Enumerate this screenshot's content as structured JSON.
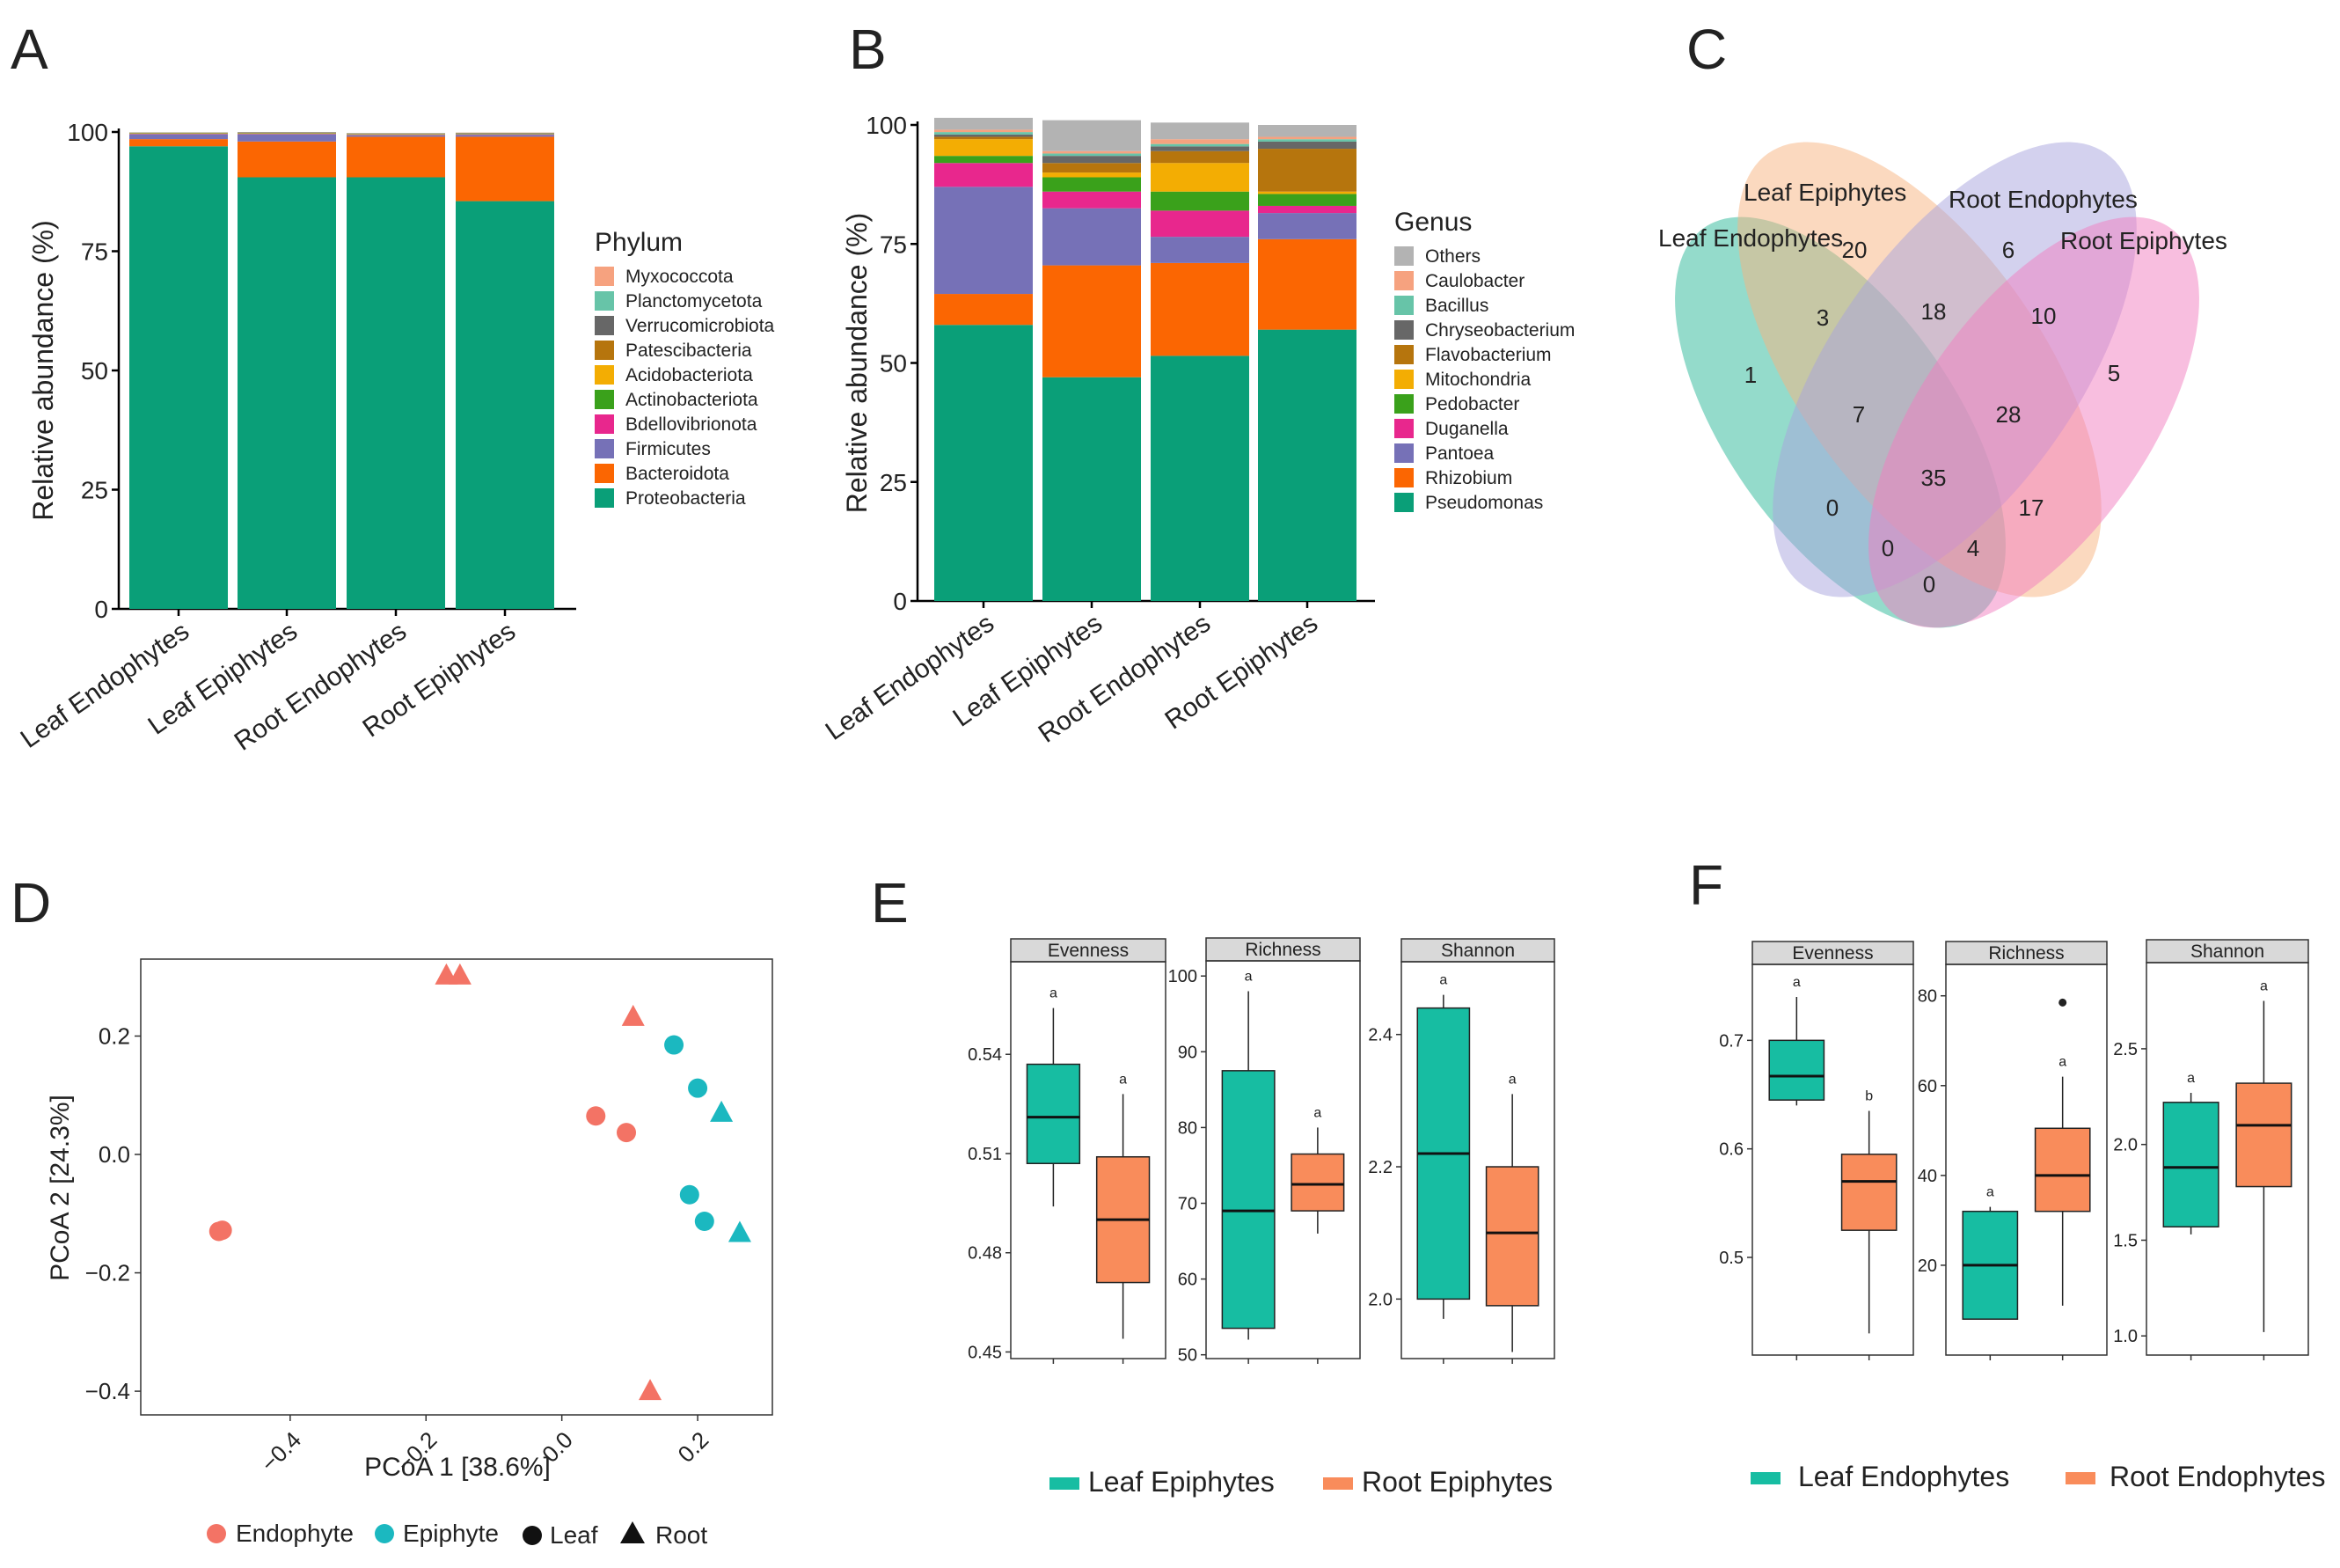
{
  "panel_labels": {
    "A": "A",
    "B": "B",
    "C": "C",
    "D": "D",
    "E": "E",
    "F": "F"
  },
  "chart_data": [
    {
      "id": "A",
      "type": "bar",
      "stacked": true,
      "ylabel": "Relative abundance (%)",
      "ylim": [
        0,
        100
      ],
      "yticks": [
        0,
        25,
        50,
        75,
        100
      ],
      "categories": [
        "Leaf Endophytes",
        "Leaf Epiphytes",
        "Root Endophytes",
        "Root Epiphytes"
      ],
      "legend_title": "Phylum",
      "series": [
        {
          "name": "Proteobacteria",
          "color": "#0a9f78",
          "values": [
            97.0,
            90.5,
            90.5,
            85.5
          ]
        },
        {
          "name": "Bacteroidota",
          "color": "#fb6602",
          "values": [
            1.5,
            7.5,
            8.5,
            13.5
          ]
        },
        {
          "name": "Firmicutes",
          "color": "#7671b7",
          "values": [
            1.0,
            1.5,
            0.3,
            0.4
          ]
        },
        {
          "name": "Bdellovibrionota",
          "color": "#e8278d",
          "values": [
            0.1,
            0.1,
            0.1,
            0.1
          ]
        },
        {
          "name": "Actinobacteriota",
          "color": "#3aa11b",
          "values": [
            0.1,
            0.1,
            0.1,
            0.1
          ]
        },
        {
          "name": "Acidobacteriota",
          "color": "#f3ad03",
          "values": [
            0.05,
            0.05,
            0.05,
            0.05
          ]
        },
        {
          "name": "Patescibacteria",
          "color": "#b6750d",
          "values": [
            0.05,
            0.05,
            0.05,
            0.05
          ]
        },
        {
          "name": "Verrucomicrobiota",
          "color": "#676767",
          "values": [
            0.05,
            0.1,
            0.1,
            0.1
          ]
        },
        {
          "name": "Planctomycetota",
          "color": "#67c4a8",
          "values": [
            0.05,
            0.05,
            0.05,
            0.05
          ]
        },
        {
          "name": "Myxococcota",
          "color": "#f6a27f",
          "values": [
            0.05,
            0.05,
            0.05,
            0.05
          ]
        }
      ]
    },
    {
      "id": "B",
      "type": "bar",
      "stacked": true,
      "ylabel": "Relative abundance (%)",
      "ylim": [
        0,
        100
      ],
      "yticks": [
        0,
        25,
        50,
        75,
        100
      ],
      "categories": [
        "Leaf Endophytes",
        "Leaf Epiphytes",
        "Root Endophytes",
        "Root Epiphytes"
      ],
      "legend_title": "Genus",
      "series": [
        {
          "name": "Pseudomonas",
          "color": "#0a9f78",
          "values": [
            58,
            47,
            51.5,
            57
          ]
        },
        {
          "name": "Rhizobium",
          "color": "#fb6602",
          "values": [
            6.5,
            23.5,
            19.5,
            19
          ]
        },
        {
          "name": "Pantoea",
          "color": "#7671b7",
          "values": [
            22.5,
            12,
            5.5,
            5.5
          ]
        },
        {
          "name": "Duganella",
          "color": "#e8278d",
          "values": [
            5,
            3.5,
            5.5,
            1.5
          ]
        },
        {
          "name": "Pedobacter",
          "color": "#3aa11b",
          "values": [
            1.5,
            3,
            4,
            2.5
          ]
        },
        {
          "name": "Mitochondria",
          "color": "#f3ad03",
          "values": [
            3.5,
            1,
            6,
            0.5
          ]
        },
        {
          "name": "Flavobacterium",
          "color": "#b6750d",
          "values": [
            0.5,
            2,
            2.5,
            9
          ]
        },
        {
          "name": "Chryseobacterium",
          "color": "#676767",
          "values": [
            0.5,
            1.5,
            1,
            1.5
          ]
        },
        {
          "name": "Bacillus",
          "color": "#67c4a8",
          "values": [
            0.5,
            0.5,
            0.5,
            0.5
          ]
        },
        {
          "name": "Caulobacter",
          "color": "#f6a27f",
          "values": [
            0.5,
            0.5,
            1,
            0.5
          ]
        },
        {
          "name": "Others",
          "color": "#b3b3b3",
          "values": [
            2.5,
            6.5,
            3.5,
            2.5
          ]
        }
      ]
    },
    {
      "id": "C",
      "type": "venn",
      "sets": [
        "Leaf Endophytes",
        "Leaf Epiphytes",
        "Root Endophytes",
        "Root Epiphytes"
      ],
      "colors": [
        "#29b897",
        "#f7b37f",
        "#a7a3dd",
        "#f27ec0"
      ],
      "regions": [
        {
          "sets": "LEn",
          "value": 1
        },
        {
          "sets": "LEp",
          "value": 20
        },
        {
          "sets": "REn",
          "value": 6
        },
        {
          "sets": "REp",
          "value": 5
        },
        {
          "sets": "LEn&LEp",
          "value": 3
        },
        {
          "sets": "LEp&REn",
          "value": 18
        },
        {
          "sets": "REn&REp",
          "value": 10
        },
        {
          "sets": "LEn&LEp&REn",
          "value": 7
        },
        {
          "sets": "LEp&REn&REp",
          "value": 28
        },
        {
          "sets": "LEn&LEp&REn&REp",
          "value": 35
        },
        {
          "sets": "LEn&REn",
          "value": 0
        },
        {
          "sets": "LEp&REp",
          "value": 17
        },
        {
          "sets": "LEn&REn&REp",
          "value": 0
        },
        {
          "sets": "LEn&LEp&REp",
          "value": 4
        },
        {
          "sets": "LEn&REp",
          "value": 0
        }
      ]
    },
    {
      "id": "D",
      "type": "scatter",
      "xlabel": "PCoA 1   [38.6%]",
      "ylabel": "PCoA 2   [24.3%]",
      "xlim": [
        -0.62,
        0.31
      ],
      "ylim": [
        -0.44,
        0.33
      ],
      "xticks": [
        -0.4,
        -0.2,
        0.0,
        0.2
      ],
      "xtick_labels": [
        "−0.4",
        "−0.2",
        "0.0",
        "0.2"
      ],
      "yticks": [
        -0.4,
        -0.2,
        0.0,
        0.2
      ],
      "ytick_labels": [
        "−0.4",
        "−0.2",
        "0.0",
        "0.2"
      ],
      "legend": {
        "endophyte": "Endophyte",
        "epiphyte": "Epiphyte",
        "leaf": "Leaf",
        "root": "Root"
      },
      "colors": {
        "Endophyte": "#f37365",
        "Epiphyte": "#1bb8c0"
      },
      "points": [
        {
          "x": -0.505,
          "y": -0.13,
          "group": "Endophyte",
          "shape": "Leaf"
        },
        {
          "x": -0.5,
          "y": -0.128,
          "group": "Endophyte",
          "shape": "Leaf"
        },
        {
          "x": 0.05,
          "y": 0.065,
          "group": "Endophyte",
          "shape": "Leaf"
        },
        {
          "x": 0.095,
          "y": 0.037,
          "group": "Endophyte",
          "shape": "Leaf"
        },
        {
          "x": -0.17,
          "y": 0.302,
          "group": "Endophyte",
          "shape": "Root"
        },
        {
          "x": -0.15,
          "y": 0.302,
          "group": "Endophyte",
          "shape": "Root"
        },
        {
          "x": 0.105,
          "y": 0.232,
          "group": "Endophyte",
          "shape": "Root"
        },
        {
          "x": 0.13,
          "y": -0.4,
          "group": "Endophyte",
          "shape": "Root"
        },
        {
          "x": 0.165,
          "y": 0.185,
          "group": "Epiphyte",
          "shape": "Leaf"
        },
        {
          "x": 0.2,
          "y": 0.112,
          "group": "Epiphyte",
          "shape": "Leaf"
        },
        {
          "x": 0.188,
          "y": -0.068,
          "group": "Epiphyte",
          "shape": "Leaf"
        },
        {
          "x": 0.21,
          "y": -0.113,
          "group": "Epiphyte",
          "shape": "Leaf"
        },
        {
          "x": 0.235,
          "y": 0.07,
          "group": "Epiphyte",
          "shape": "Root"
        },
        {
          "x": 0.262,
          "y": -0.133,
          "group": "Epiphyte",
          "shape": "Root"
        }
      ]
    },
    {
      "id": "E",
      "type": "boxplot",
      "legend": [
        "Leaf Epiphytes",
        "Root Epiphytes"
      ],
      "colors": [
        "#17bda2",
        "#f98c5b"
      ],
      "facets": [
        {
          "title": "Evenness",
          "ylim": [
            0.448,
            0.568
          ],
          "yticks": [
            0.45,
            0.48,
            0.51,
            0.54
          ],
          "ytick_labels": [
            "0.45",
            "0.48",
            "0.51",
            "0.54"
          ],
          "groups": [
            {
              "min": 0.494,
              "q1": 0.507,
              "median": 0.521,
              "q3": 0.537,
              "max": 0.554,
              "letter": "a"
            },
            {
              "min": 0.454,
              "q1": 0.471,
              "median": 0.49,
              "q3": 0.509,
              "max": 0.528,
              "letter": "a"
            }
          ]
        },
        {
          "title": "Richness",
          "ylim": [
            49.5,
            102
          ],
          "yticks": [
            50,
            60,
            70,
            80,
            90,
            100
          ],
          "ytick_labels": [
            "50",
            "60",
            "70",
            "80",
            "90",
            "100"
          ],
          "groups": [
            {
              "min": 52,
              "q1": 53.5,
              "median": 69,
              "q3": 87.5,
              "max": 98,
              "letter": "a"
            },
            {
              "min": 66,
              "q1": 69,
              "median": 72.5,
              "q3": 76.5,
              "max": 80,
              "letter": "a"
            }
          ]
        },
        {
          "title": "Shannon",
          "ylim": [
            1.91,
            2.51
          ],
          "yticks": [
            2.0,
            2.2,
            2.4
          ],
          "ytick_labels": [
            "2.0",
            "2.2",
            "2.4"
          ],
          "groups": [
            {
              "min": 1.97,
              "q1": 2.0,
              "median": 2.22,
              "q3": 2.44,
              "max": 2.46,
              "letter": "a"
            },
            {
              "min": 1.92,
              "q1": 1.99,
              "median": 2.1,
              "q3": 2.2,
              "max": 2.31,
              "letter": "a"
            }
          ]
        }
      ]
    },
    {
      "id": "F",
      "type": "boxplot",
      "legend": [
        "Leaf Endophytes",
        "Root Endophytes"
      ],
      "colors": [
        "#17bda2",
        "#f98c5b"
      ],
      "facets": [
        {
          "title": "Evenness",
          "ylim": [
            0.41,
            0.77
          ],
          "yticks": [
            0.5,
            0.6,
            0.7
          ],
          "ytick_labels": [
            "0.5",
            "0.6",
            "0.7"
          ],
          "groups": [
            {
              "min": 0.64,
              "q1": 0.645,
              "median": 0.667,
              "q3": 0.7,
              "max": 0.74,
              "letter": "a"
            },
            {
              "min": 0.43,
              "q1": 0.525,
              "median": 0.57,
              "q3": 0.595,
              "max": 0.635,
              "letter": "b"
            }
          ]
        },
        {
          "title": "Richness",
          "ylim": [
            0,
            87
          ],
          "yticks": [
            20,
            40,
            60,
            80
          ],
          "ytick_labels": [
            "20",
            "40",
            "60",
            "80"
          ],
          "groups": [
            {
              "min": 8,
              "q1": 8,
              "median": 20,
              "q3": 32,
              "max": 33,
              "letter": "a"
            },
            {
              "min": 11,
              "q1": 32,
              "median": 40,
              "q3": 50.5,
              "max": 62,
              "outlier": 78.5,
              "letter": "a"
            }
          ]
        },
        {
          "title": "Shannon",
          "ylim": [
            0.9,
            2.95
          ],
          "yticks": [
            1.0,
            1.5,
            2.0,
            2.5
          ],
          "ytick_labels": [
            "1.0",
            "1.5",
            "2.0",
            "2.5"
          ],
          "groups": [
            {
              "min": 1.53,
              "q1": 1.57,
              "median": 1.88,
              "q3": 2.22,
              "max": 2.27,
              "letter": "a"
            },
            {
              "min": 1.02,
              "q1": 1.78,
              "median": 2.1,
              "q3": 2.32,
              "max": 2.75,
              "letter": "a"
            }
          ]
        }
      ]
    }
  ]
}
